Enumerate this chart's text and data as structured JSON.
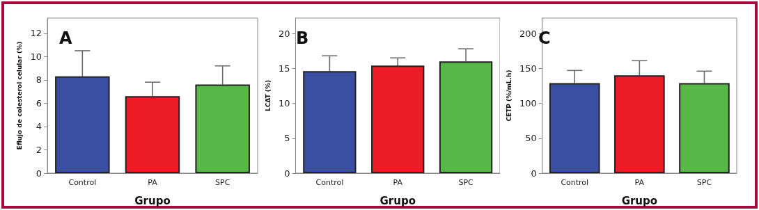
{
  "chart_data": [
    {
      "type": "bar",
      "title": "A",
      "xlabel": "Grupo",
      "ylabel": "Eflujo de colesterol celular (%)",
      "categories": [
        "Control",
        "PA",
        "SPC"
      ],
      "colors": [
        "#3a4fa1",
        "#ec1c27",
        "#57b847"
      ],
      "values": [
        8.3,
        6.6,
        7.6
      ],
      "errors": [
        [
          8.3,
          10.5
        ],
        [
          6.6,
          7.8
        ],
        [
          7.6,
          9.2
        ]
      ],
      "ylim": [
        0,
        13.3
      ],
      "yticks": [
        0,
        2,
        4,
        6,
        8,
        10,
        12
      ]
    },
    {
      "type": "bar",
      "title": "B",
      "xlabel": "Grupo",
      "ylabel": "LCAT (%)",
      "categories": [
        "Control",
        "PA",
        "SPC"
      ],
      "colors": [
        "#3a4fa1",
        "#ec1c27",
        "#57b847"
      ],
      "values": [
        14.6,
        15.4,
        16.0
      ],
      "errors": [
        [
          14.6,
          16.8
        ],
        [
          15.4,
          16.5
        ],
        [
          16.0,
          17.8
        ]
      ],
      "ylim": [
        0,
        22.2
      ],
      "yticks": [
        0,
        5,
        10,
        15,
        20
      ]
    },
    {
      "type": "bar",
      "title": "C",
      "xlabel": "Grupo",
      "ylabel": "CETP (%/mL.h)",
      "categories": [
        "Control",
        "PA",
        "SPC"
      ],
      "colors": [
        "#3a4fa1",
        "#ec1c27",
        "#57b847"
      ],
      "values": [
        129,
        140,
        129
      ],
      "errors": [
        [
          129,
          147
        ],
        [
          140,
          161
        ],
        [
          129,
          146
        ]
      ],
      "ylim": [
        0,
        222
      ],
      "yticks": [
        0,
        50,
        100,
        150,
        200
      ]
    }
  ]
}
